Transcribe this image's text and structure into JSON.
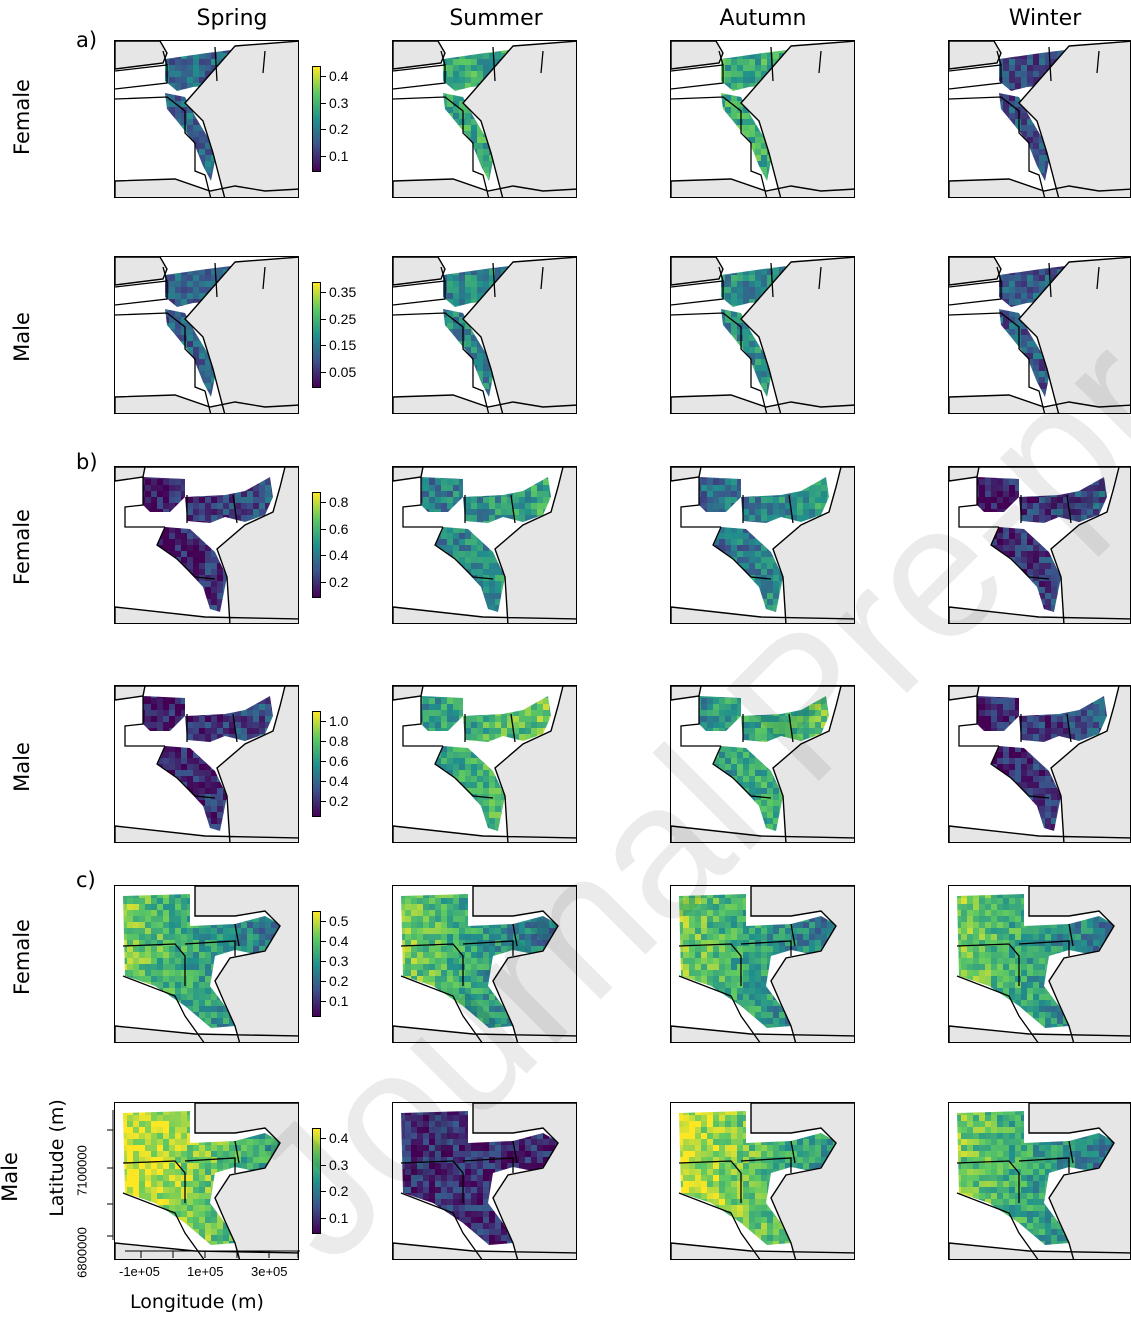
{
  "columns": [
    "Spring",
    "Summer",
    "Autumn",
    "Winter"
  ],
  "panels": [
    {
      "letter": "a)",
      "rows": [
        {
          "label": "Female",
          "legend_ticks": [
            "0.4",
            "0.3",
            "0.2",
            "0.1"
          ],
          "extent": "a"
        },
        {
          "label": "Male",
          "legend_ticks": [
            "0.35",
            "0.25",
            "0.15",
            "0.05"
          ],
          "extent": "a"
        }
      ]
    },
    {
      "letter": "b)",
      "rows": [
        {
          "label": "Female",
          "legend_ticks": [
            "0.8",
            "0.6",
            "0.4",
            "0.2"
          ],
          "extent": "b"
        },
        {
          "label": "Male",
          "legend_ticks": [
            "1.0",
            "0.8",
            "0.6",
            "0.4",
            "0.2"
          ],
          "extent": "b"
        }
      ]
    },
    {
      "letter": "c)",
      "rows": [
        {
          "label": "Female",
          "legend_ticks": [
            "0.5",
            "0.4",
            "0.3",
            "0.2",
            "0.1"
          ],
          "extent": "c"
        },
        {
          "label": "Male",
          "legend_ticks": [
            "0.4",
            "0.3",
            "0.2",
            "0.1"
          ],
          "extent": "c"
        }
      ]
    }
  ],
  "axes": {
    "xlabel": "Longitude (m)",
    "ylabel": "Latitude (m)",
    "xticks": [
      "-1e+05",
      "1e+05",
      "3e+05"
    ],
    "yticks": [
      "7100000",
      "6800000"
    ]
  },
  "colormap": [
    "#440154",
    "#3b528b",
    "#21918c",
    "#5ec962",
    "#fde725"
  ],
  "land_color": "#e6e6e6",
  "watermark": "Journal Pre-proofs"
}
